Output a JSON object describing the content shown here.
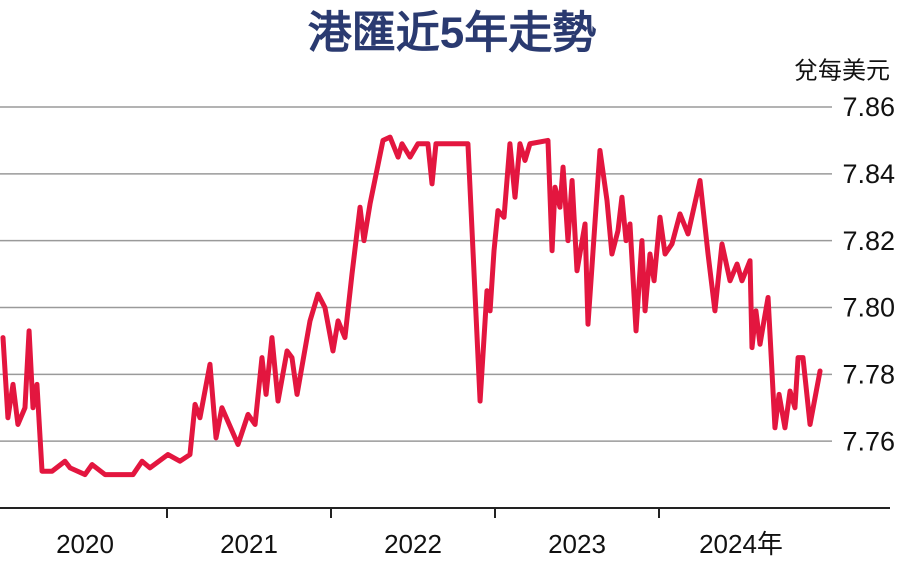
{
  "chart_data": {
    "type": "line",
    "title": "港匯近5年走勢",
    "y_label": "兌每美元",
    "categories": [
      "2020",
      "2021",
      "2022",
      "2023",
      "2024年"
    ],
    "xlim": [
      2020,
      2025
    ],
    "xticks": [
      2021,
      2022,
      2023,
      2024
    ],
    "ylim": [
      7.74,
      7.86
    ],
    "yticks": [
      {
        "value": 7.76,
        "label": "7.76"
      },
      {
        "value": 7.78,
        "label": "7.78"
      },
      {
        "value": 7.8,
        "label": "7.80"
      },
      {
        "value": 7.82,
        "label": "7.82"
      },
      {
        "value": 7.84,
        "label": "7.84"
      },
      {
        "value": 7.86,
        "label": "7.86"
      }
    ],
    "grid": true,
    "series": [
      {
        "color": "#e3163f",
        "x": [
          2020.0,
          2020.03,
          2020.061,
          2020.091,
          2020.134,
          2020.159,
          2020.183,
          2020.207,
          2020.238,
          2020.299,
          2020.378,
          2020.409,
          2020.5,
          2020.543,
          2020.622,
          2020.793,
          2020.848,
          2020.896,
          2021.006,
          2021.079,
          2021.14,
          2021.171,
          2021.201,
          2021.262,
          2021.299,
          2021.335,
          2021.433,
          2021.494,
          2021.537,
          2021.579,
          2021.604,
          2021.64,
          2021.677,
          2021.732,
          2021.762,
          2021.793,
          2021.872,
          2021.921,
          2021.963,
          2022.012,
          2022.043,
          2022.085,
          2022.128,
          2022.177,
          2022.201,
          2022.238,
          2022.317,
          2022.36,
          2022.409,
          2022.433,
          2022.482,
          2022.53,
          2022.591,
          2022.616,
          2022.64,
          2022.835,
          2022.909,
          2022.951,
          2022.97,
          2022.994,
          2023.018,
          2023.055,
          2023.091,
          2023.122,
          2023.152,
          2023.183,
          2023.213,
          2023.323,
          2023.348,
          2023.366,
          2023.396,
          2023.415,
          2023.445,
          2023.47,
          2023.5,
          2023.549,
          2023.567,
          2023.64,
          2023.683,
          2023.713,
          2023.75,
          2023.774,
          2023.799,
          2023.823,
          2023.86,
          2023.896,
          2023.915,
          2023.945,
          2023.97,
          2024.006,
          2024.037,
          2024.079,
          2024.128,
          2024.177,
          2024.25,
          2024.299,
          2024.341,
          2024.384,
          2024.433,
          2024.476,
          2024.506,
          2024.555,
          2024.567,
          2024.591,
          2024.616,
          2024.64,
          2024.665,
          2024.707,
          2024.732,
          2024.768,
          2024.799,
          2024.829,
          2024.848,
          2024.878,
          2024.921,
          2024.982
        ],
        "values": [
          7.791,
          7.767,
          7.777,
          7.765,
          7.77,
          7.793,
          7.77,
          7.777,
          7.751,
          7.751,
          7.754,
          7.752,
          7.75,
          7.753,
          7.75,
          7.75,
          7.754,
          7.752,
          7.756,
          7.754,
          7.756,
          7.771,
          7.767,
          7.783,
          7.761,
          7.77,
          7.759,
          7.768,
          7.765,
          7.785,
          7.774,
          7.791,
          7.772,
          7.787,
          7.785,
          7.774,
          7.796,
          7.804,
          7.8,
          7.787,
          7.796,
          7.791,
          7.81,
          7.83,
          7.82,
          7.831,
          7.85,
          7.851,
          7.845,
          7.849,
          7.845,
          7.849,
          7.849,
          7.837,
          7.849,
          7.849,
          7.772,
          7.805,
          7.799,
          7.817,
          7.829,
          7.827,
          7.849,
          7.833,
          7.849,
          7.844,
          7.849,
          7.85,
          7.817,
          7.836,
          7.83,
          7.842,
          7.82,
          7.838,
          7.811,
          7.825,
          7.795,
          7.847,
          7.832,
          7.816,
          7.823,
          7.833,
          7.82,
          7.825,
          7.793,
          7.82,
          7.799,
          7.816,
          7.808,
          7.827,
          7.816,
          7.819,
          7.828,
          7.822,
          7.838,
          7.816,
          7.799,
          7.819,
          7.808,
          7.813,
          7.808,
          7.814,
          7.788,
          7.799,
          7.789,
          7.796,
          7.803,
          7.764,
          7.774,
          7.764,
          7.775,
          7.77,
          7.785,
          7.785,
          7.765,
          7.781
        ]
      }
    ]
  }
}
